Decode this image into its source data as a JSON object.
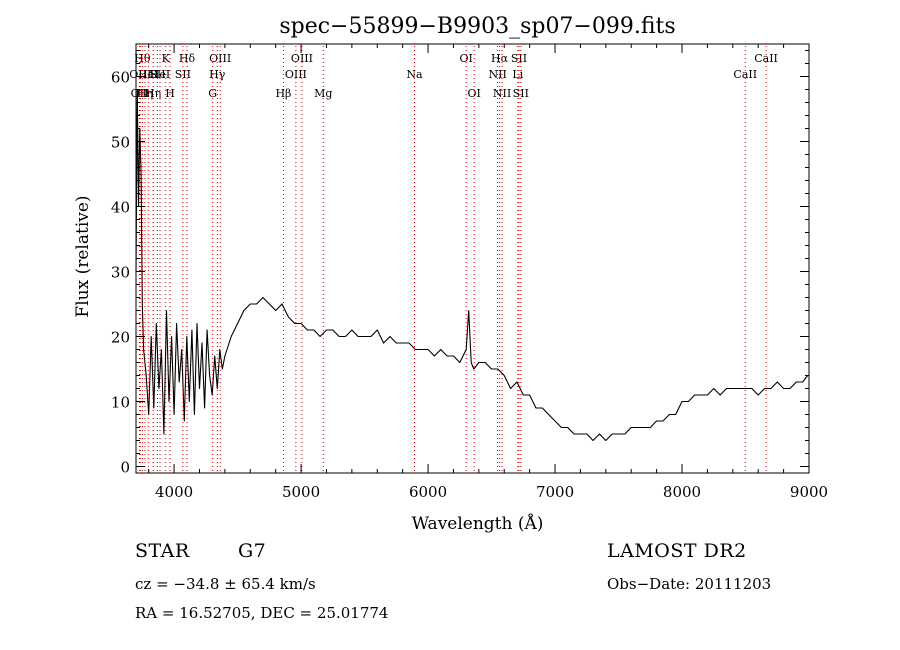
{
  "chart_data": {
    "type": "line",
    "title": "spec−55899−B9903_sp07−099.fits",
    "xlabel": "Wavelength (Å)",
    "ylabel": "Flux (relative)",
    "xlim": [
      3700,
      9000
    ],
    "ylim": [
      -1,
      65
    ],
    "xticks": [
      4000,
      5000,
      6000,
      7000,
      8000,
      9000
    ],
    "yticks": [
      0,
      10,
      20,
      30,
      40,
      50,
      60
    ],
    "grid": false,
    "series": [
      {
        "x": [
          3700,
          3710,
          3720,
          3730,
          3740,
          3750,
          3760,
          3780,
          3800,
          3820,
          3840,
          3860,
          3880,
          3900,
          3920,
          3940,
          3960,
          3980,
          4000,
          4020,
          4040,
          4060,
          4080,
          4100,
          4120,
          4140,
          4160,
          4180,
          4200,
          4220,
          4240,
          4260,
          4280,
          4300,
          4320,
          4340,
          4360,
          4380,
          4400,
          4450,
          4500,
          4550,
          4600,
          4650,
          4700,
          4750,
          4800,
          4850,
          4900,
          4950,
          5000,
          5050,
          5100,
          5150,
          5200,
          5250,
          5300,
          5350,
          5400,
          5450,
          5500,
          5550,
          5600,
          5650,
          5700,
          5750,
          5800,
          5850,
          5900,
          5950,
          6000,
          6050,
          6100,
          6150,
          6200,
          6250,
          6300,
          6320,
          6340,
          6360,
          6400,
          6450,
          6500,
          6550,
          6600,
          6650,
          6700,
          6750,
          6800,
          6850,
          6900,
          6950,
          7000,
          7050,
          7100,
          7150,
          7200,
          7250,
          7300,
          7350,
          7400,
          7450,
          7500,
          7550,
          7600,
          7650,
          7700,
          7750,
          7800,
          7850,
          7900,
          7950,
          8000,
          8050,
          8100,
          8150,
          8200,
          8250,
          8300,
          8350,
          8400,
          8450,
          8500,
          8550,
          8600,
          8650,
          8700,
          8750,
          8800,
          8850,
          8900,
          8950,
          8990
        ],
        "y": [
          30,
          58,
          40,
          52,
          45,
          25,
          18,
          14,
          8,
          20,
          9,
          22,
          12,
          18,
          5,
          24,
          10,
          20,
          8,
          22,
          13,
          18,
          7,
          20,
          10,
          21,
          8,
          22,
          12,
          19,
          9,
          21,
          14,
          11,
          17,
          12,
          18,
          15,
          17,
          20,
          22,
          24,
          25,
          25,
          26,
          25,
          24,
          25,
          23,
          22,
          22,
          21,
          21,
          20,
          21,
          21,
          20,
          20,
          21,
          20,
          20,
          20,
          21,
          19,
          20,
          19,
          19,
          19,
          18,
          18,
          18,
          17,
          18,
          17,
          17,
          16,
          18,
          24,
          16,
          15,
          16,
          16,
          15,
          15,
          14,
          12,
          13,
          11,
          11,
          9,
          9,
          8,
          7,
          6,
          6,
          5,
          5,
          5,
          4,
          5,
          4,
          5,
          5,
          5,
          6,
          6,
          6,
          6,
          7,
          7,
          8,
          8,
          10,
          10,
          11,
          11,
          11,
          12,
          11,
          12,
          12,
          12,
          12,
          12,
          11,
          12,
          12,
          13,
          12,
          12,
          13,
          13,
          14
        ]
      }
    ],
    "lines": [
      {
        "x": 3727,
        "label": "OII",
        "row": 3
      },
      {
        "x": 3734,
        "label": "OIII",
        "row": 2
      },
      {
        "x": 3750,
        "label": "Hθ",
        "row": 1
      },
      {
        "x": 3771,
        "label": "Hη",
        "row": 3
      },
      {
        "x": 3797,
        "label": "HeI",
        "row": 2
      },
      {
        "x": 3835,
        "label": "Hη",
        "row": 3
      },
      {
        "x": 3869,
        "label": "SII",
        "row": 2
      },
      {
        "x": 3889,
        "label": "HeI",
        "row": 2
      },
      {
        "x": 3934,
        "label": "K",
        "row": 1
      },
      {
        "x": 3968,
        "label": "H",
        "row": 3
      },
      {
        "x": 4069,
        "label": "SII",
        "row": 2
      },
      {
        "x": 4102,
        "label": "Hδ",
        "row": 1
      },
      {
        "x": 4304,
        "label": "G",
        "row": 3
      },
      {
        "x": 4340,
        "label": "Hγ",
        "row": 2
      },
      {
        "x": 4363,
        "label": "OIII",
        "row": 1
      },
      {
        "x": 4861,
        "label": "Hβ",
        "row": 3
      },
      {
        "x": 4959,
        "label": "OIII",
        "row": 2
      },
      {
        "x": 5007,
        "label": "OIII",
        "row": 1
      },
      {
        "x": 5175,
        "label": "Mg",
        "row": 3
      },
      {
        "x": 5893,
        "label": "Na",
        "row": 2
      },
      {
        "x": 6300,
        "label": "OI",
        "row": 1
      },
      {
        "x": 6363,
        "label": "OI",
        "row": 3
      },
      {
        "x": 6548,
        "label": "NII",
        "row": 2
      },
      {
        "x": 6563,
        "label": "Hα",
        "row": 1
      },
      {
        "x": 6583,
        "label": "NII",
        "row": 3
      },
      {
        "x": 6707,
        "label": "Li",
        "row": 2
      },
      {
        "x": 6716,
        "label": "SII",
        "row": 1
      },
      {
        "x": 6731,
        "label": "SII",
        "row": 3
      },
      {
        "x": 8498,
        "label": "CaII",
        "row": 2
      },
      {
        "x": 8662,
        "label": "CaII",
        "row": 1
      }
    ]
  },
  "info": {
    "object_type": "STAR",
    "subclass": "G7",
    "survey": "LAMOST DR2",
    "obs_date": "Obs−Date: 20111203",
    "cz": "cz = −34.8 ± 65.4 km/s",
    "radec": "RA =  16.52705, DEC =  25.01774"
  }
}
